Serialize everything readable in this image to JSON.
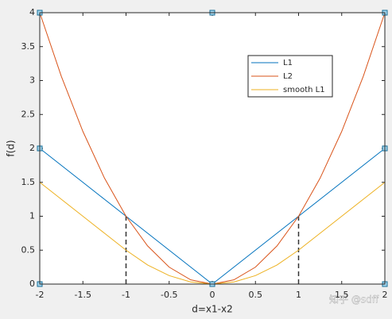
{
  "chart_data": {
    "type": "line",
    "xlabel": "d=x1-x2",
    "ylabel": "f(d)",
    "x": [
      -2,
      -1.75,
      -1.5,
      -1.25,
      -1,
      -0.75,
      -0.5,
      -0.25,
      0,
      0.25,
      0.5,
      0.75,
      1,
      1.25,
      1.5,
      1.75,
      2
    ],
    "series": [
      {
        "name": "L1",
        "color": "#0072bd",
        "values": [
          2,
          1.75,
          1.5,
          1.25,
          1,
          0.75,
          0.5,
          0.25,
          0,
          0.25,
          0.5,
          0.75,
          1,
          1.25,
          1.5,
          1.75,
          2
        ]
      },
      {
        "name": "L2",
        "color": "#d95319",
        "values": [
          4,
          3.0625,
          2.25,
          1.5625,
          1,
          0.5625,
          0.25,
          0.0625,
          0,
          0.0625,
          0.25,
          0.5625,
          1,
          1.5625,
          2.25,
          3.0625,
          4
        ]
      },
      {
        "name": "smooth L1",
        "color": "#edb120",
        "values": [
          1.5,
          1.25,
          1,
          0.75,
          0.5,
          0.28125,
          0.125,
          0.03125,
          0,
          0.03125,
          0.125,
          0.28125,
          0.5,
          0.75,
          1,
          1.25,
          1.5
        ]
      }
    ],
    "reference_lines": [
      {
        "x": -1,
        "y": 1
      },
      {
        "x": 1,
        "y": 1
      }
    ],
    "markers": {
      "x": [
        -2,
        -2,
        -2,
        0,
        2,
        2,
        2,
        0
      ],
      "y": [
        0,
        2,
        4,
        4,
        4,
        2,
        0,
        0
      ]
    },
    "xlim": [
      -2,
      2
    ],
    "ylim": [
      0,
      4
    ],
    "xticks": [
      -2,
      -1.5,
      -1,
      -0.5,
      0,
      0.5,
      1,
      1.5,
      2
    ],
    "yticks": [
      0,
      0.5,
      1,
      1.5,
      2,
      2.5,
      3,
      3.5,
      4
    ],
    "legend": "upper-right",
    "watermark": "知乎 @sdff"
  }
}
